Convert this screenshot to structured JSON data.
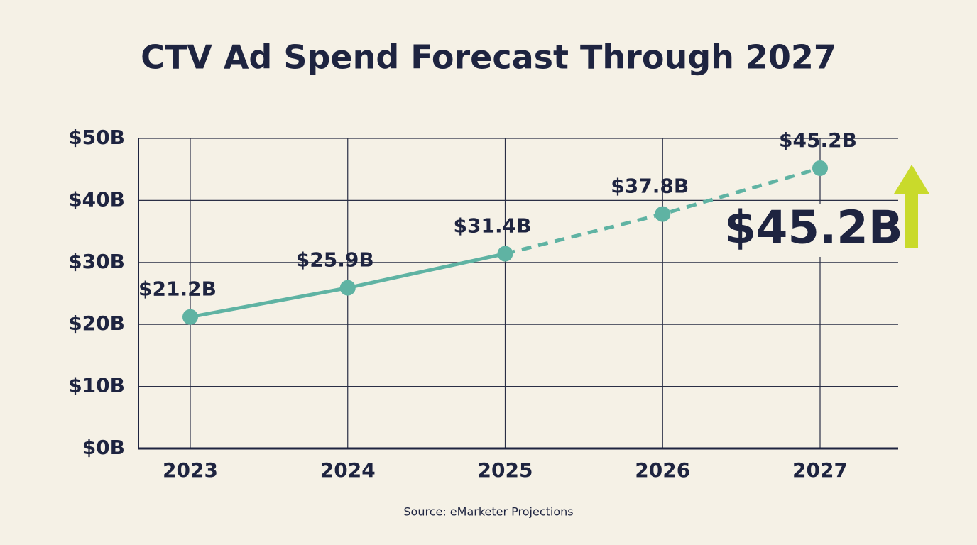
{
  "chart_data": {
    "type": "line",
    "title": "CTV Ad Spend Forecast Through 2027",
    "categories": [
      "2023",
      "2024",
      "2025",
      "2026",
      "2027"
    ],
    "series": [
      {
        "color": "#5fb3a3",
        "values": [
          21.2,
          25.9,
          31.4,
          37.8,
          45.2
        ],
        "value_labels": [
          "$21.2B",
          "$25.9B",
          "$31.4B",
          "$37.8B",
          "$45.2B"
        ],
        "dashed_from": 2
      }
    ],
    "ylim": [
      0,
      50
    ],
    "yticks": [
      {
        "value": 0,
        "label": "$0B"
      },
      {
        "value": 10,
        "label": "$10B"
      },
      {
        "value": 20,
        "label": "$20B"
      },
      {
        "value": 30,
        "label": "$30B"
      },
      {
        "value": 40,
        "label": "$40B"
      },
      {
        "value": 50,
        "label": "$50B"
      }
    ],
    "grid": true,
    "callout": "$45.2B",
    "arrow_color": "#c9da2b",
    "source": "Source: eMarketer Projections"
  }
}
